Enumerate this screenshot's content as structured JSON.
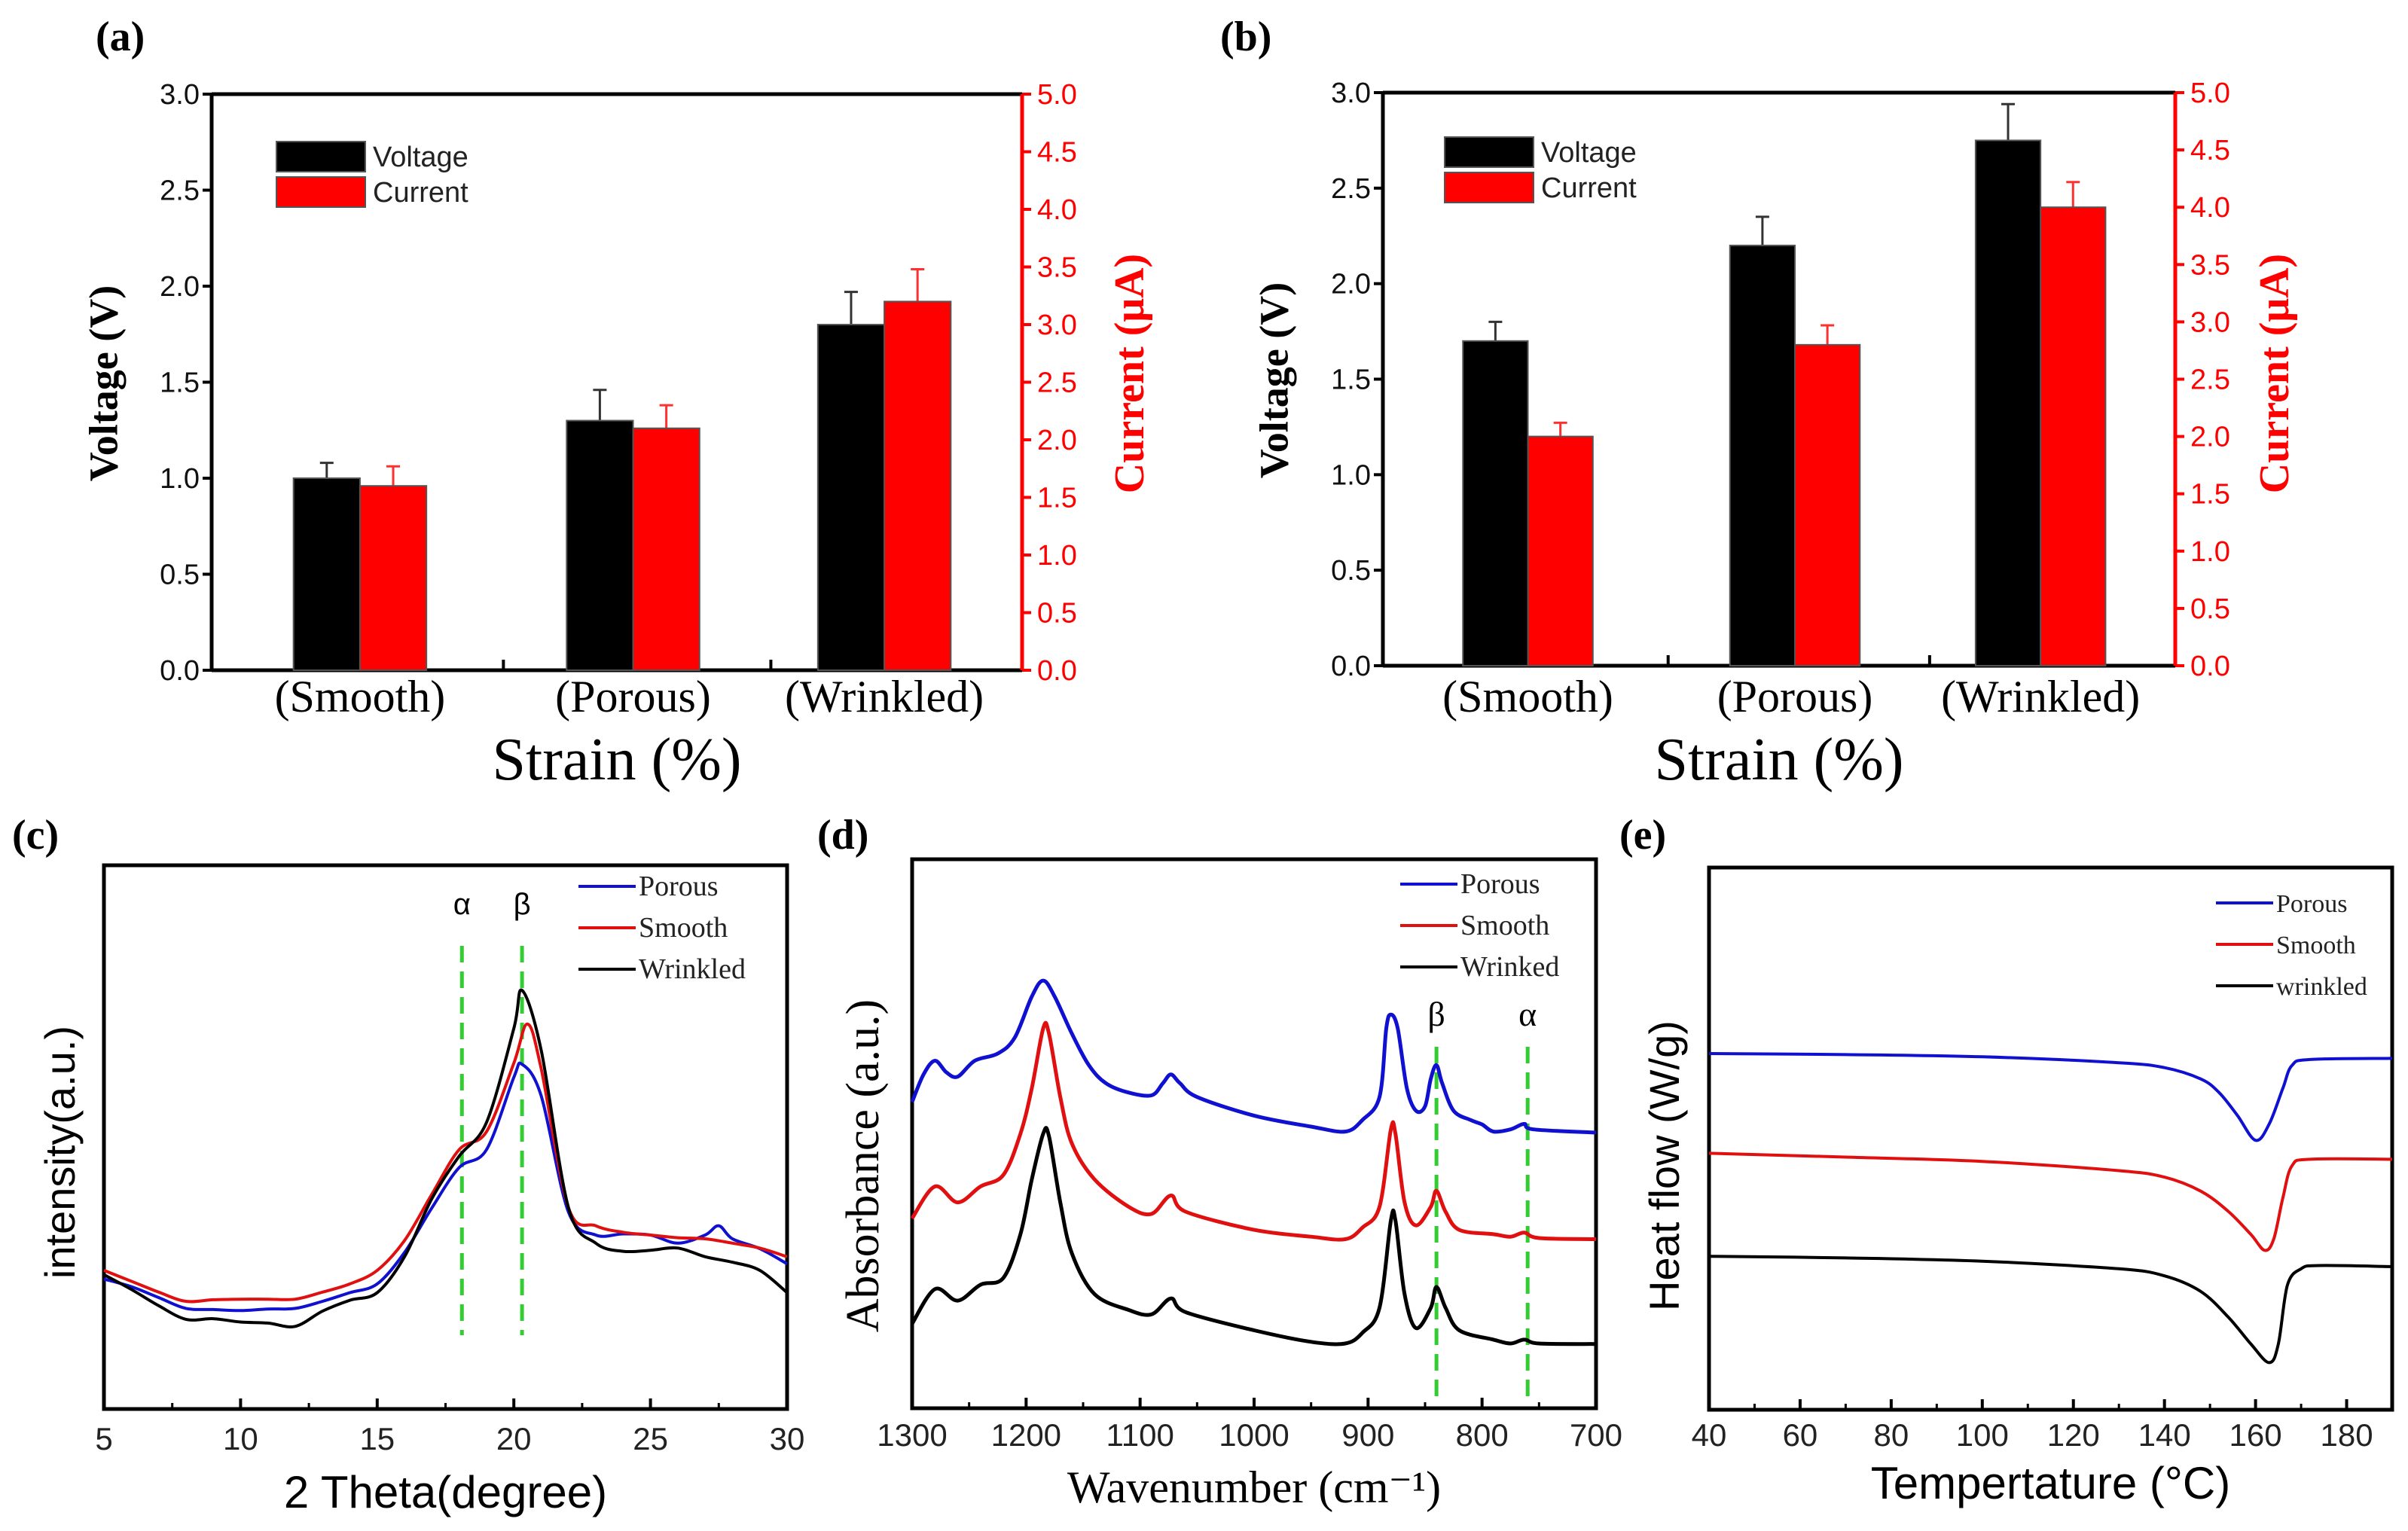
{
  "chart_data": [
    {
      "panel": "(a)",
      "type": "bar",
      "categories": [
        "(Smooth)",
        "(Porous)",
        "(Wrinkled)"
      ],
      "series": [
        {
          "name": "Voltage",
          "axis": "left",
          "color": "#000000",
          "values": [
            1.0,
            1.3,
            1.8
          ],
          "errors": [
            0.08,
            0.16,
            0.17
          ]
        },
        {
          "name": "Current",
          "axis": "right",
          "color": "#ff0000",
          "values": [
            1.6,
            2.1,
            3.2
          ],
          "errors": [
            0.17,
            0.2,
            0.28
          ]
        }
      ],
      "xlabel": "Strain (%)",
      "ylabel": "Voltage (V)",
      "y2label": "Current (μA)",
      "ylim": [
        0,
        3
      ],
      "y2lim": [
        0,
        5
      ],
      "yticks": [
        "0.0",
        "0.5",
        "1.0",
        "1.5",
        "2.0",
        "2.5",
        "3.0"
      ],
      "y2ticks": [
        "0.0",
        "0.5",
        "1.0",
        "1.5",
        "2.0",
        "2.5",
        "3.0",
        "3.5",
        "4.0",
        "4.5",
        "5.0"
      ],
      "legend": "top-left"
    },
    {
      "panel": "(b)",
      "type": "bar",
      "categories": [
        "(Smooth)",
        "(Porous)",
        "(Wrinkled)"
      ],
      "series": [
        {
          "name": "Voltage",
          "axis": "left",
          "color": "#000000",
          "values": [
            1.7,
            2.2,
            2.75
          ],
          "errors": [
            0.1,
            0.15,
            0.19
          ]
        },
        {
          "name": "Current",
          "axis": "right",
          "color": "#ff0000",
          "values": [
            2.0,
            2.8,
            4.0
          ],
          "errors": [
            0.12,
            0.17,
            0.22
          ]
        }
      ],
      "xlabel": "Strain (%)",
      "ylabel": "Voltage (V)",
      "y2label": "Current (μA)",
      "ylim": [
        0,
        3
      ],
      "y2lim": [
        0,
        5
      ],
      "yticks": [
        "0.0",
        "0.5",
        "1.0",
        "1.5",
        "2.0",
        "2.5",
        "3.0"
      ],
      "y2ticks": [
        "0.0",
        "0.5",
        "1.0",
        "1.5",
        "2.0",
        "2.5",
        "3.0",
        "3.5",
        "4.0",
        "4.5",
        "5.0"
      ],
      "legend": "top-left"
    },
    {
      "panel": "(c)",
      "type": "line",
      "xlabel": "2 Theta(degree)",
      "ylabel": "intensity(a.u.)",
      "xlim": [
        5,
        30
      ],
      "ylim": [
        0,
        100
      ],
      "xticks": [
        5,
        10,
        15,
        20,
        25,
        30
      ],
      "xtick_labels": [
        "5",
        "10",
        "15",
        "20",
        "25",
        "30"
      ],
      "markers": [
        {
          "label": "α",
          "x": 18.1
        },
        {
          "label": "β",
          "x": 20.3
        }
      ],
      "legend": "top-right",
      "series": [
        {
          "name": "Porous",
          "color": "#1010d0",
          "x": [
            5,
            6,
            7,
            8,
            9,
            10,
            11,
            12,
            13,
            14,
            15,
            16,
            17,
            18,
            19,
            20,
            20.3,
            21,
            22,
            23,
            24,
            25,
            26,
            27,
            27.5,
            28,
            29,
            30
          ],
          "y": [
            23.9,
            22.5,
            20.5,
            18.5,
            18.3,
            18.1,
            18.4,
            18.5,
            19.8,
            21.4,
            23,
            28.8,
            37,
            44.4,
            47.7,
            61,
            63.4,
            57.6,
            36.2,
            32,
            32.2,
            32,
            30.5,
            32,
            33.7,
            31.3,
            29.5,
            26.7
          ]
        },
        {
          "name": "Smooth",
          "color": "#e01010",
          "x": [
            5,
            6,
            7,
            8,
            9,
            10,
            11,
            12,
            13,
            14,
            15,
            16,
            17,
            18,
            19,
            20,
            20.5,
            21,
            22,
            23,
            24,
            25,
            26,
            27,
            28,
            29,
            30
          ],
          "y": [
            25.5,
            23.5,
            21.5,
            19.8,
            20.1,
            20.2,
            20.2,
            20.2,
            21.5,
            23,
            25.5,
            31,
            39.5,
            47.7,
            51,
            63.6,
            70.8,
            62.6,
            37,
            33.7,
            32.5,
            32,
            31.5,
            31.3,
            30.5,
            29.6,
            28
          ]
        },
        {
          "name": "Wrinkled",
          "color": "#000000",
          "x": [
            5,
            6,
            7,
            8,
            9,
            10,
            11,
            12,
            13,
            14,
            15,
            16,
            17,
            18,
            19,
            20,
            20.3,
            21,
            22,
            23,
            24,
            25,
            26,
            27,
            28,
            29,
            30
          ],
          "y": [
            24.7,
            22,
            19,
            16.5,
            16.6,
            16,
            15.8,
            15.2,
            18,
            20,
            21.4,
            28,
            38.7,
            46.5,
            52.7,
            70,
            77,
            66,
            37,
            30.5,
            29,
            29.2,
            29.6,
            28,
            27,
            25.5,
            21.4
          ]
        }
      ]
    },
    {
      "panel": "(d)",
      "type": "line",
      "xlabel": "Wavenumber (cm⁻¹)",
      "ylabel": "Absorbance (a.u.)",
      "xlim": [
        1300,
        700
      ],
      "ylim": [
        0,
        100
      ],
      "xticks": [
        1300,
        1200,
        1100,
        1000,
        900,
        800,
        700
      ],
      "xtick_labels": [
        "1300",
        "1200",
        "1100",
        "1000",
        "900",
        "800",
        "700"
      ],
      "markers": [
        {
          "label": "β",
          "x": 840
        },
        {
          "label": "α",
          "x": 760
        }
      ],
      "legend": "top-right",
      "series": [
        {
          "name": "Porous",
          "color": "#1010d0",
          "x": [
            1300,
            1290,
            1280,
            1270,
            1260,
            1245,
            1225,
            1210,
            1195,
            1185,
            1175,
            1160,
            1145,
            1130,
            1110,
            1090,
            1080,
            1073,
            1065,
            1050,
            1000,
            950,
            920,
            905,
            890,
            884,
            880,
            874,
            866,
            858,
            850,
            845,
            840,
            835,
            825,
            810,
            800,
            790,
            775,
            763,
            755,
            700
          ],
          "y": [
            55.8,
            60.8,
            63.3,
            61.2,
            60.4,
            63.3,
            64.6,
            67.5,
            75,
            77.9,
            75,
            68.3,
            62.5,
            59.2,
            57.5,
            57,
            59.2,
            60.8,
            59.2,
            56.7,
            53.3,
            51.3,
            50.4,
            52.5,
            56.7,
            69.2,
            71.7,
            69.2,
            58.3,
            54.2,
            55,
            60,
            62.5,
            59.2,
            54.2,
            52.5,
            51.7,
            50.4,
            50.8,
            51.8,
            50.8,
            50.2
          ]
        },
        {
          "name": "Smooth",
          "color": "#e01010",
          "x": [
            1300,
            1280,
            1260,
            1240,
            1220,
            1205,
            1195,
            1185,
            1180,
            1170,
            1160,
            1140,
            1110,
            1090,
            1073,
            1060,
            1000,
            950,
            920,
            905,
            890,
            880,
            876,
            868,
            858,
            845,
            840,
            832,
            820,
            790,
            775,
            763,
            750,
            700
          ],
          "y": [
            34.6,
            40.4,
            37.5,
            40.4,
            42.5,
            50,
            58.3,
            69.2,
            68.3,
            56.7,
            48.3,
            41.7,
            36.7,
            35.4,
            38.75,
            35.8,
            32.5,
            31.25,
            30.8,
            32.9,
            36.7,
            50.8,
            50,
            37.5,
            33.3,
            36.7,
            39.6,
            35.8,
            32.5,
            31.7,
            31.25,
            32,
            31,
            30.8
          ]
        },
        {
          "name": "Wrinked",
          "color": "#000000",
          "x": [
            1300,
            1280,
            1260,
            1240,
            1220,
            1205,
            1195,
            1185,
            1180,
            1170,
            1160,
            1140,
            1110,
            1090,
            1073,
            1060,
            1000,
            950,
            920,
            905,
            890,
            880,
            876,
            868,
            858,
            845,
            840,
            832,
            820,
            790,
            775,
            763,
            750,
            700
          ],
          "y": [
            15.4,
            21.7,
            19.6,
            22.5,
            23.75,
            31.7,
            41.7,
            50,
            49.6,
            37.5,
            28.3,
            20.8,
            17.9,
            17.1,
            20,
            17.5,
            14.2,
            12.1,
            11.8,
            13.75,
            18.3,
            34.2,
            34.2,
            20.8,
            14.6,
            18.3,
            22.1,
            18.3,
            14.2,
            12.5,
            11.8,
            12.5,
            11.8,
            11.7
          ]
        }
      ]
    },
    {
      "panel": "(e)",
      "type": "line",
      "xlabel": "Tempertature (°C)",
      "ylabel": "Heat flow (W/g)",
      "xlim": [
        40,
        190
      ],
      "ylim": [
        0,
        100
      ],
      "xticks": [
        40,
        60,
        80,
        100,
        120,
        140,
        160,
        180
      ],
      "xtick_labels": [
        "40",
        "60",
        "80",
        "100",
        "120",
        "140",
        "160",
        "180"
      ],
      "markers": [],
      "legend": "top-right",
      "series": [
        {
          "name": "Porous",
          "color": "#1010d0",
          "x": [
            40,
            70,
            100,
            130,
            140,
            148,
            152,
            156,
            160,
            163,
            166,
            168,
            172,
            190
          ],
          "y": [
            65.7,
            65.5,
            65.1,
            64,
            63.1,
            61,
            58.5,
            54.3,
            49.7,
            52.7,
            59.3,
            63.5,
            64.6,
            64.8
          ]
        },
        {
          "name": "Smooth",
          "color": "#e01010",
          "x": [
            40,
            70,
            100,
            130,
            140,
            148,
            154,
            159,
            162,
            164,
            166,
            168,
            172,
            190
          ],
          "y": [
            47.3,
            46.6,
            45.8,
            44.1,
            42.9,
            40.3,
            36.6,
            32.3,
            29.4,
            31.5,
            39.1,
            45,
            46.2,
            46.2
          ]
        },
        {
          "name": "wrinkled",
          "color": "#000000",
          "x": [
            40,
            70,
            100,
            130,
            140,
            148,
            154,
            159,
            163,
            165,
            167,
            170,
            174,
            190
          ],
          "y": [
            28.3,
            28,
            27.4,
            26,
            24.7,
            21.8,
            17.1,
            12.1,
            8.7,
            12.1,
            23,
            26,
            26.6,
            26.4
          ]
        }
      ]
    }
  ]
}
